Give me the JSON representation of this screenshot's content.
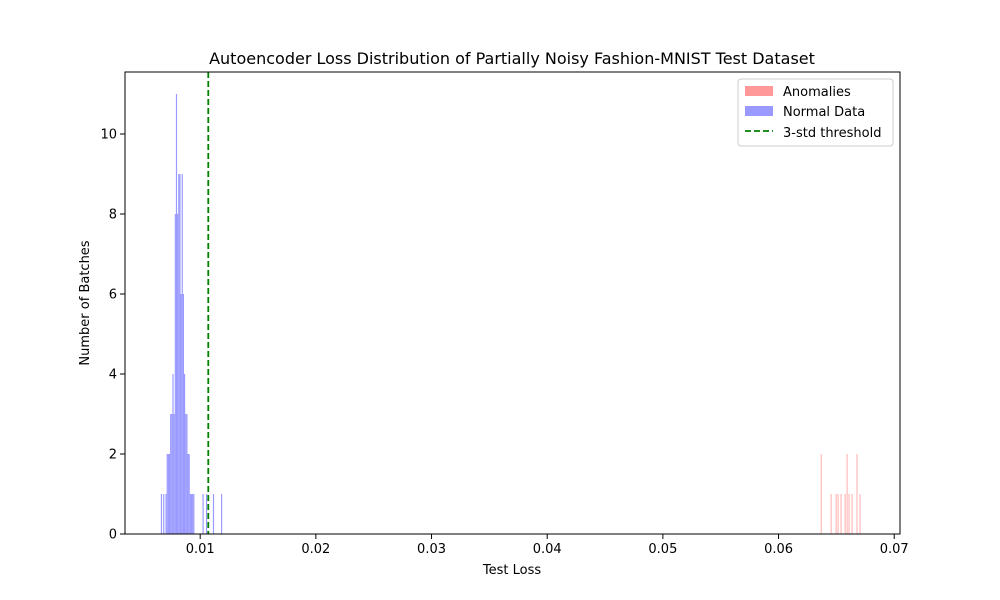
{
  "chart_data": {
    "type": "histogram",
    "title": "Autoencoder Loss Distribution of Partially Noisy Fashion-MNIST Test Dataset",
    "xlabel": "Test Loss",
    "ylabel": "Number of Batches",
    "xlim": [
      0.0035,
      0.0705
    ],
    "ylim": [
      0,
      11.55
    ],
    "x_ticks": [
      0.01,
      0.02,
      0.03,
      0.04,
      0.05,
      0.06,
      0.07
    ],
    "x_tick_labels": [
      "0.01",
      "0.02",
      "0.03",
      "0.04",
      "0.05",
      "0.06",
      "0.07"
    ],
    "y_ticks": [
      0,
      2,
      4,
      6,
      8,
      10
    ],
    "y_tick_labels": [
      "0",
      "2",
      "4",
      "6",
      "8",
      "10"
    ],
    "grid": false,
    "legend_position": "top-right",
    "series": [
      {
        "name": "Anomalies",
        "color": "#ff9999",
        "bin_width": 3e-05,
        "bins": [
          [
            0.06365,
            2
          ],
          [
            0.06451,
            1
          ],
          [
            0.06494,
            1
          ],
          [
            0.06511,
            1
          ],
          [
            0.06537,
            1
          ],
          [
            0.06572,
            1
          ],
          [
            0.06589,
            2
          ],
          [
            0.06606,
            1
          ],
          [
            0.06632,
            1
          ],
          [
            0.06675,
            2
          ],
          [
            0.06701,
            1
          ]
        ]
      },
      {
        "name": "Normal Data",
        "color": "#9999ff",
        "bin_width": 0.0001,
        "bins": [
          [
            0.0066,
            1
          ],
          [
            0.0068,
            1
          ],
          [
            0.007,
            1
          ],
          [
            0.0071,
            2
          ],
          [
            0.0072,
            2
          ],
          [
            0.0073,
            2
          ],
          [
            0.0074,
            3
          ],
          [
            0.0075,
            3
          ],
          [
            0.0076,
            4
          ],
          [
            0.0077,
            3
          ],
          [
            0.0078,
            8
          ],
          [
            0.0079,
            11
          ],
          [
            0.008,
            8
          ],
          [
            0.0081,
            9
          ],
          [
            0.0082,
            9
          ],
          [
            0.0083,
            6
          ],
          [
            0.0084,
            9
          ],
          [
            0.0085,
            6
          ],
          [
            0.0086,
            4
          ],
          [
            0.0087,
            3
          ],
          [
            0.0088,
            3
          ],
          [
            0.0089,
            2
          ],
          [
            0.009,
            2
          ],
          [
            0.0091,
            1
          ],
          [
            0.0092,
            1
          ],
          [
            0.0093,
            1
          ],
          [
            0.0094,
            1
          ],
          [
            0.0102,
            1
          ],
          [
            0.0105,
            1
          ],
          [
            0.0111,
            1
          ],
          [
            0.0118,
            1
          ]
        ]
      }
    ],
    "threshold": {
      "name": "3-std threshold",
      "x": 0.0107,
      "color": "#008000",
      "style": "dashed"
    }
  }
}
